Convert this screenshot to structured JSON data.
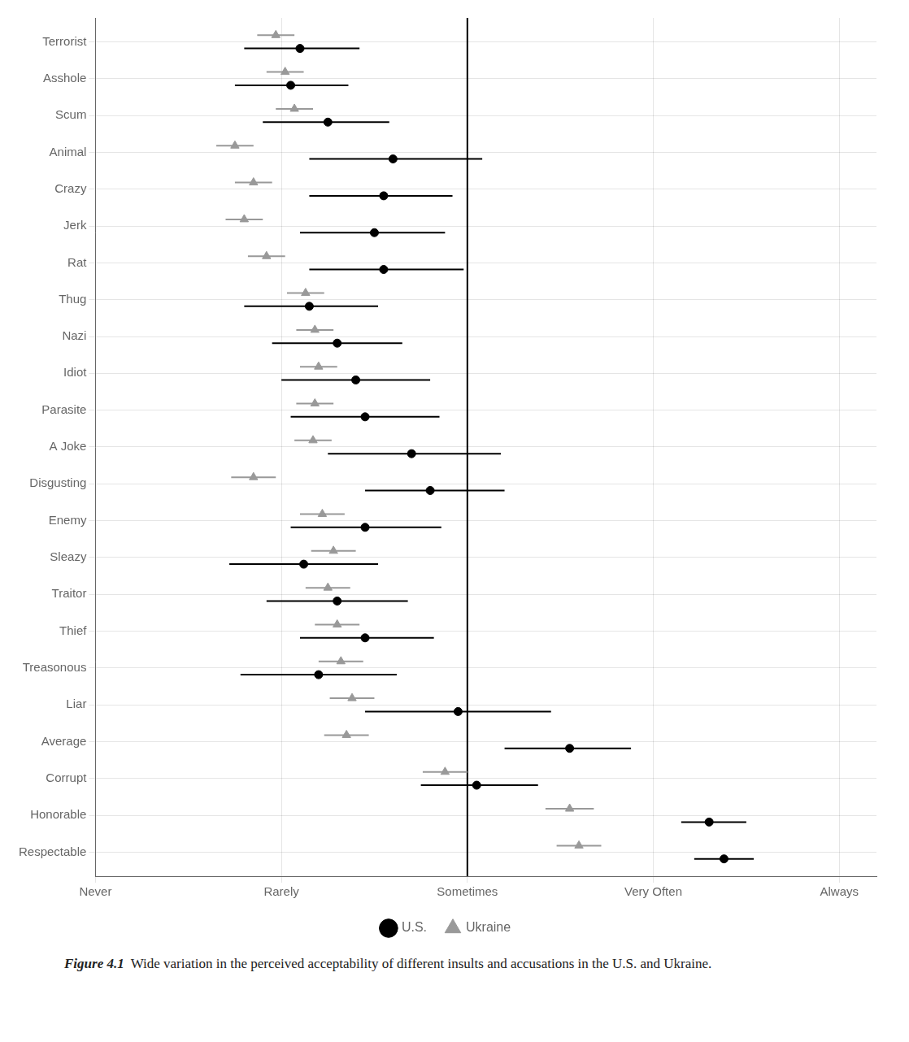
{
  "chart_data": {
    "type": "dot",
    "orientation": "horizontal",
    "categories": [
      "Terrorist",
      "Asshole",
      "Scum",
      "Animal",
      "Crazy",
      "Jerk",
      "Rat",
      "Thug",
      "Nazi",
      "Idiot",
      "Parasite",
      "A Joke",
      "Disgusting",
      "Enemy",
      "Sleazy",
      "Traitor",
      "Thief",
      "Treasonous",
      "Liar",
      "Average",
      "Corrupt",
      "Honorable",
      "Respectable"
    ],
    "series": [
      {
        "name": "U.S.",
        "color": "#000000",
        "marker": "circle",
        "values": [
          2.1,
          2.05,
          2.25,
          2.6,
          2.55,
          2.5,
          2.55,
          2.15,
          2.3,
          2.4,
          2.45,
          2.7,
          2.8,
          2.45,
          2.12,
          2.3,
          2.45,
          2.2,
          2.95,
          3.55,
          3.05,
          4.3,
          4.38
        ],
        "error_low": [
          1.8,
          1.75,
          1.9,
          2.15,
          2.15,
          2.1,
          2.15,
          1.8,
          1.95,
          2.0,
          2.05,
          2.25,
          2.45,
          2.05,
          1.72,
          1.92,
          2.1,
          1.78,
          2.45,
          3.2,
          2.75,
          4.15,
          4.22
        ],
        "error_high": [
          2.42,
          2.36,
          2.58,
          3.08,
          2.92,
          2.88,
          2.98,
          2.52,
          2.65,
          2.8,
          2.85,
          3.18,
          3.2,
          2.86,
          2.52,
          2.68,
          2.82,
          2.62,
          3.45,
          3.88,
          3.38,
          4.5,
          4.54
        ]
      },
      {
        "name": "Ukraine",
        "color": "#999999",
        "marker": "triangle",
        "values": [
          1.97,
          2.02,
          2.07,
          1.75,
          1.85,
          1.8,
          1.92,
          2.13,
          2.18,
          2.2,
          2.18,
          2.17,
          1.85,
          2.22,
          2.28,
          2.25,
          2.3,
          2.32,
          2.38,
          2.35,
          2.88,
          3.55,
          3.6
        ],
        "error_low": [
          1.87,
          1.92,
          1.97,
          1.65,
          1.75,
          1.7,
          1.82,
          2.03,
          2.08,
          2.1,
          2.08,
          2.07,
          1.73,
          2.1,
          2.16,
          2.13,
          2.18,
          2.2,
          2.26,
          2.23,
          2.76,
          3.42,
          3.48
        ],
        "error_high": [
          2.07,
          2.12,
          2.17,
          1.85,
          1.95,
          1.9,
          2.02,
          2.23,
          2.28,
          2.3,
          2.28,
          2.27,
          1.97,
          2.34,
          2.4,
          2.37,
          2.42,
          2.44,
          2.5,
          2.47,
          3.0,
          3.68,
          3.72
        ]
      }
    ],
    "reference_line": 3.0,
    "xlim": [
      1.0,
      5.2
    ],
    "xticks": [
      {
        "value": 1,
        "label": "Never"
      },
      {
        "value": 2,
        "label": "Rarely"
      },
      {
        "value": 3,
        "label": "Sometimes"
      },
      {
        "value": 4,
        "label": "Very Often"
      },
      {
        "value": 5,
        "label": "Always"
      }
    ],
    "grid": true,
    "legend": "bottom",
    "caption_title": "Figure 4.1",
    "caption": "Wide variation in the perceived acceptability of different insults and accusations in the U.S. and Ukraine."
  }
}
